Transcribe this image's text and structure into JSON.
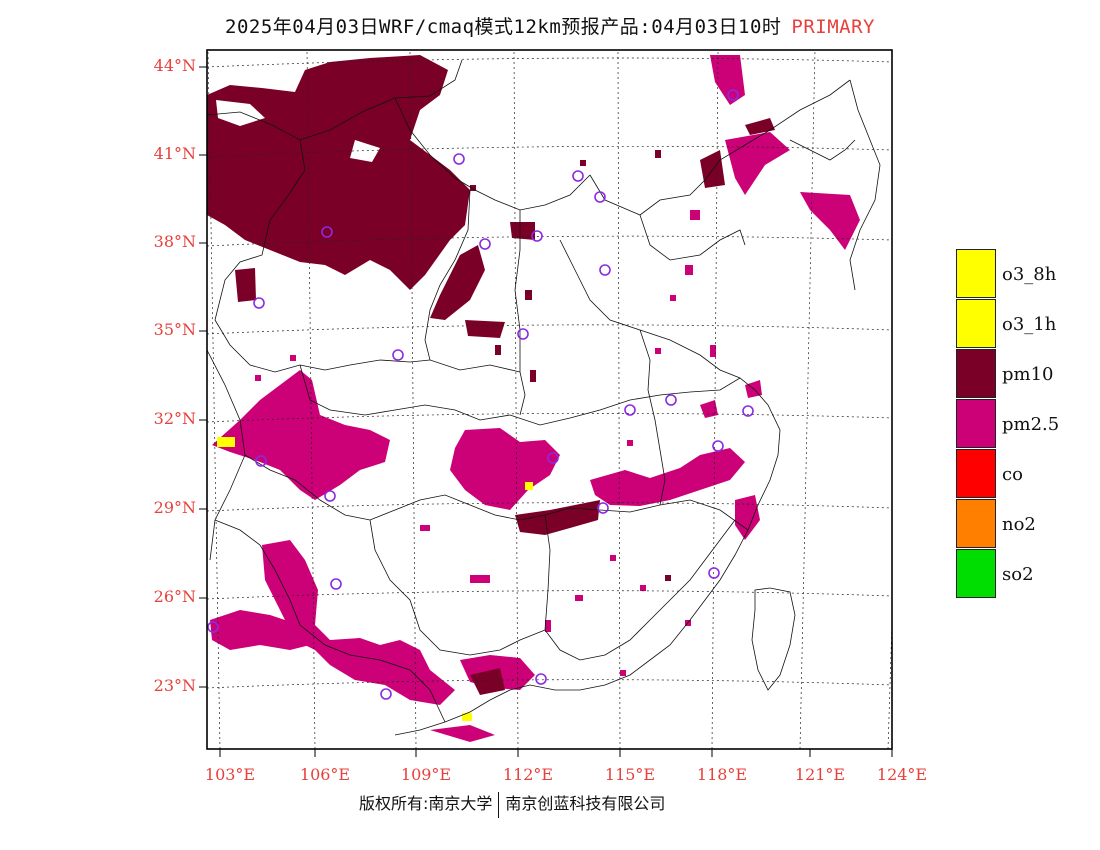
{
  "title": {
    "text": "2025年04月03日WRF/cmaq模式12km预报产品:04月03日10时",
    "tag": "PRIMARY"
  },
  "lat_labels": [
    "44°N",
    "41°N",
    "38°N",
    "35°N",
    "32°N",
    "29°N",
    "26°N",
    "23°N"
  ],
  "lon_labels": [
    "103°E",
    "106°E",
    "109°E",
    "112°E",
    "115°E",
    "118°E",
    "121°E",
    "124°E"
  ],
  "legend": [
    {
      "label": "o3_8h",
      "color": "#ffff00"
    },
    {
      "label": "o3_1h",
      "color": "#ffff00"
    },
    {
      "label": "pm10",
      "color": "#7b0027"
    },
    {
      "label": "pm2.5",
      "color": "#cc0077"
    },
    {
      "label": "co",
      "color": "#ff0000"
    },
    {
      "label": "no2",
      "color": "#ff7f00"
    },
    {
      "label": "so2",
      "color": "#00dd00"
    }
  ],
  "footer": {
    "left": "版权所有:南京大学",
    "right": "南京创蓝科技有限公司"
  },
  "colors": {
    "accent": "#e8403c",
    "pm10": "#7b0027",
    "pm25": "#cc0077",
    "o3": "#ffff00",
    "station": "#8a2be2"
  }
}
